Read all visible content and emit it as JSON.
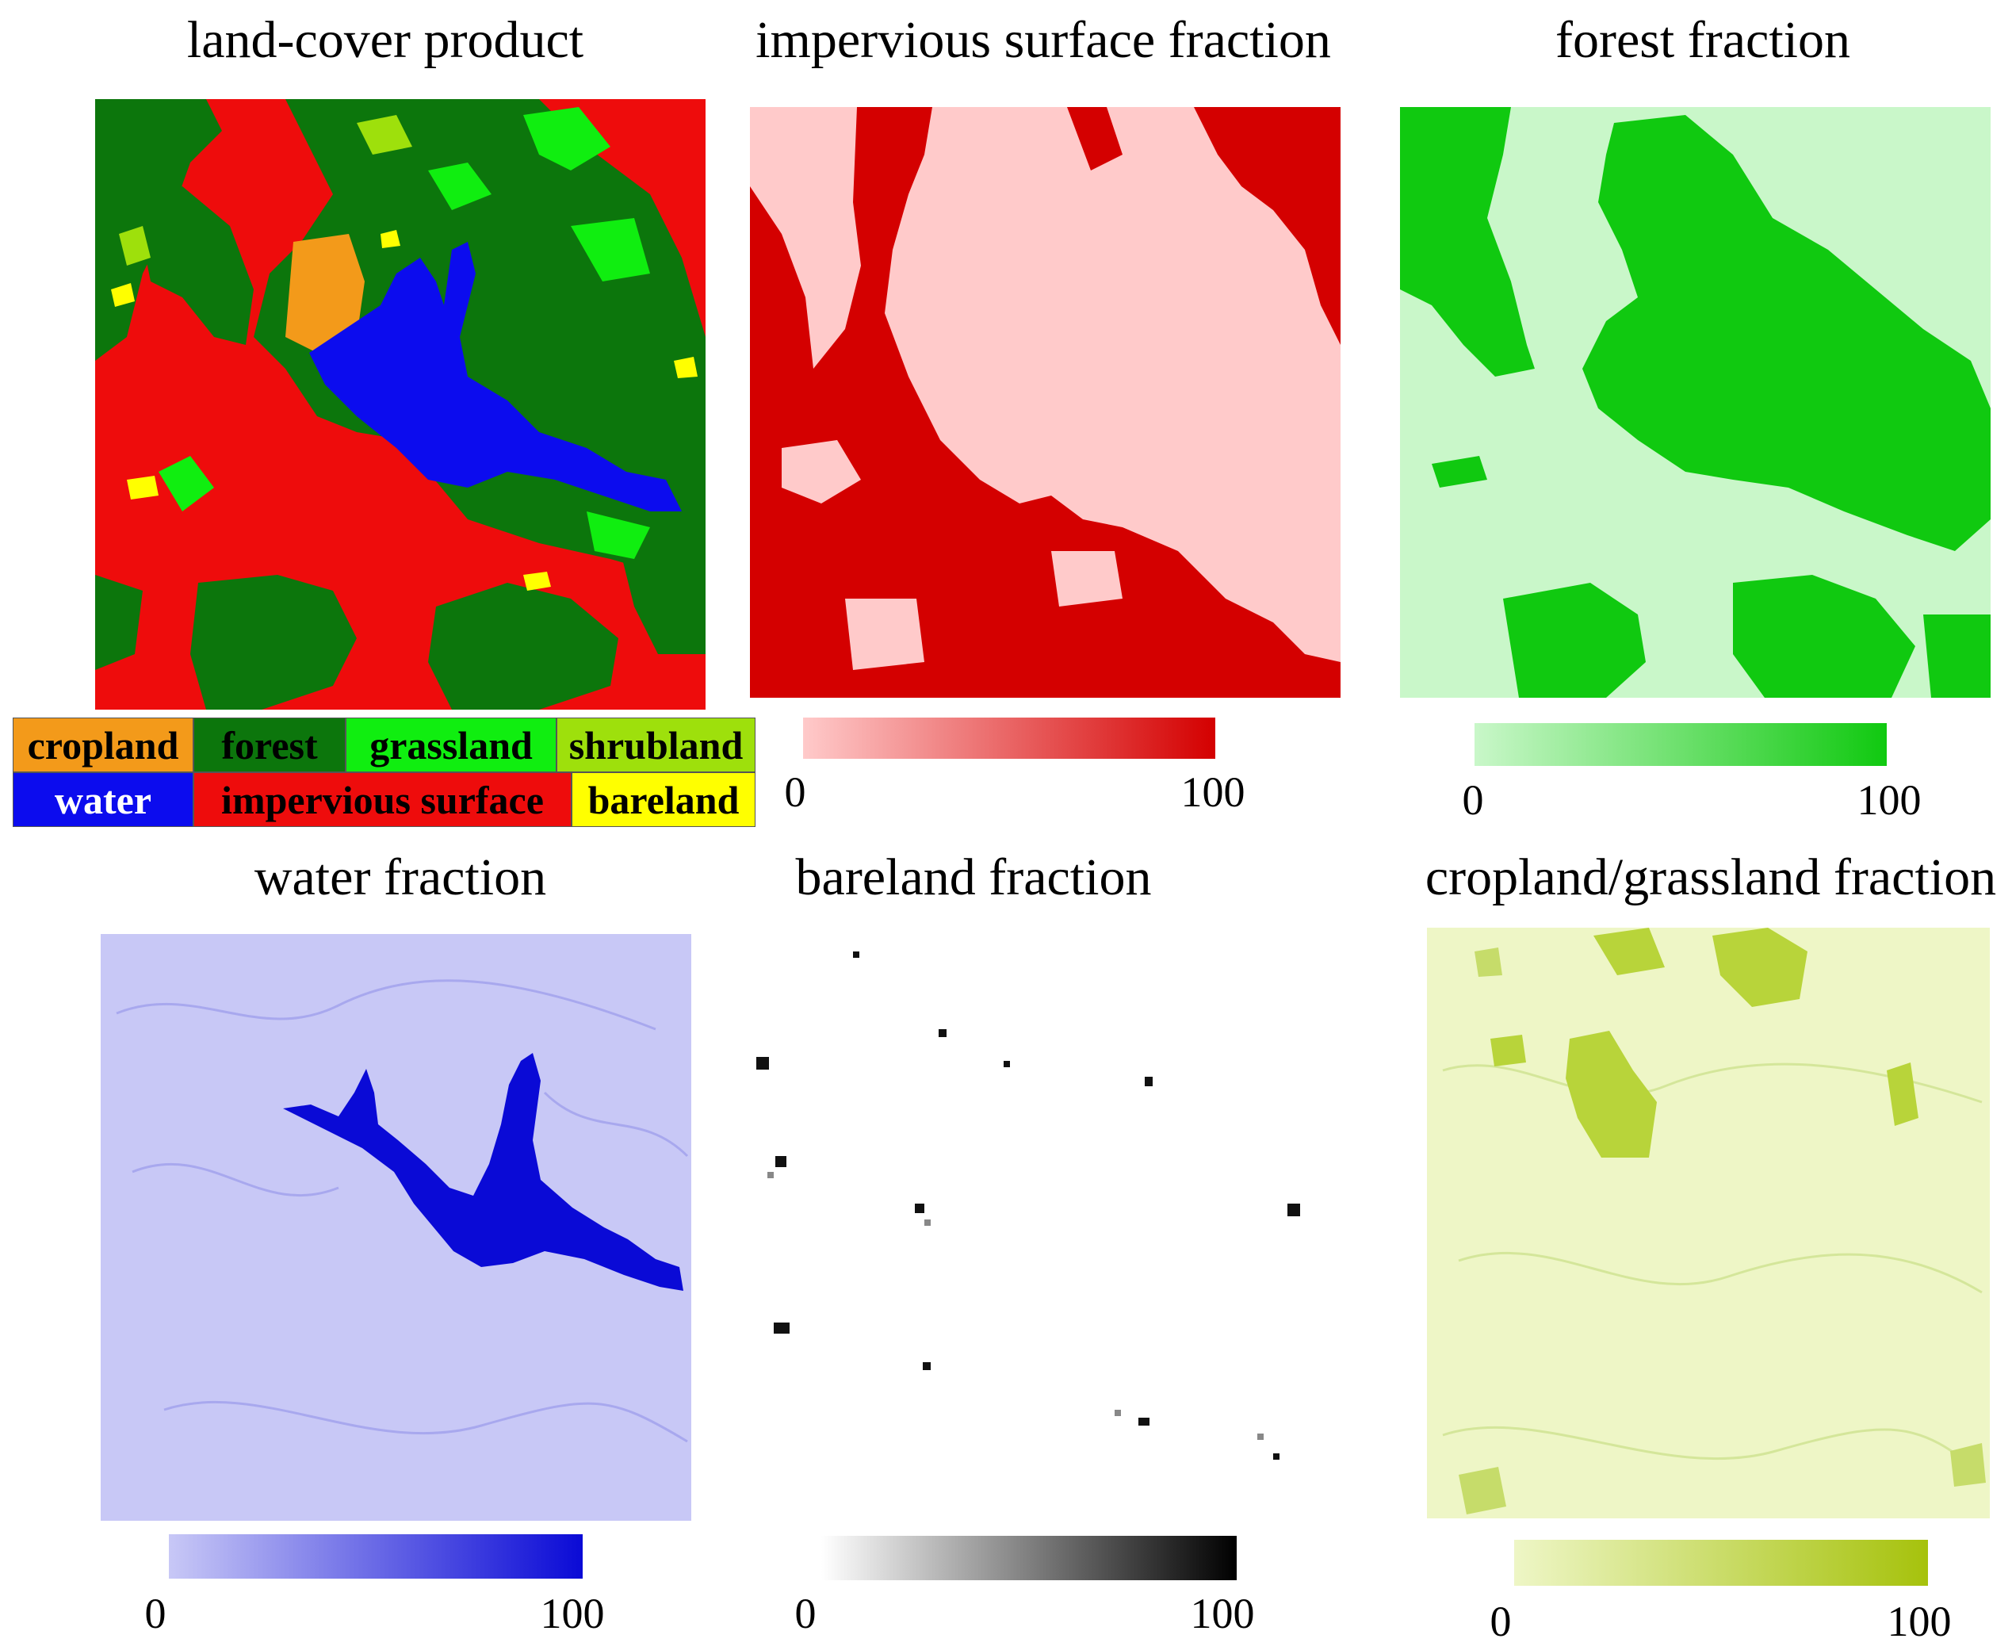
{
  "panels": [
    {
      "id": "landcover",
      "title": "land-cover product"
    },
    {
      "id": "impervious",
      "title": "impervious surface fraction",
      "scale_min": "0",
      "scale_max": "100",
      "low": "#ffcaca",
      "high": "#d40000"
    },
    {
      "id": "forest",
      "title": "forest fraction",
      "scale_min": "0",
      "scale_max": "100",
      "low": "#c9f7c9",
      "high": "#10c910"
    },
    {
      "id": "water",
      "title": "water fraction",
      "scale_min": "0",
      "scale_max": "100",
      "low": "#c8c8f6",
      "high": "#0a0ad6"
    },
    {
      "id": "bareland",
      "title": "bareland  fraction",
      "scale_min": "0",
      "scale_max": "100",
      "low": "#ffffff",
      "high": "#000000"
    },
    {
      "id": "cropgrass",
      "title": "cropland/grassland  fraction",
      "scale_min": "0",
      "scale_max": "100",
      "low": "#eef6c6",
      "high": "#a6c20c"
    }
  ],
  "legend": [
    {
      "label": "cropland",
      "color": "#f39a1a",
      "text": "#000000"
    },
    {
      "label": "forest",
      "color": "#0c760c",
      "text": "#000000"
    },
    {
      "label": "grassland",
      "color": "#10ee10",
      "text": "#000000"
    },
    {
      "label": "shrubland",
      "color": "#9ee00c",
      "text": "#000000"
    },
    {
      "label": "water",
      "color": "#0c0cee",
      "text": "#ffffff"
    },
    {
      "label": "impervious surface",
      "color": "#ee0c0c",
      "text": "#000000"
    },
    {
      "label": "bareland",
      "color": "#ffff00",
      "text": "#000000"
    }
  ]
}
